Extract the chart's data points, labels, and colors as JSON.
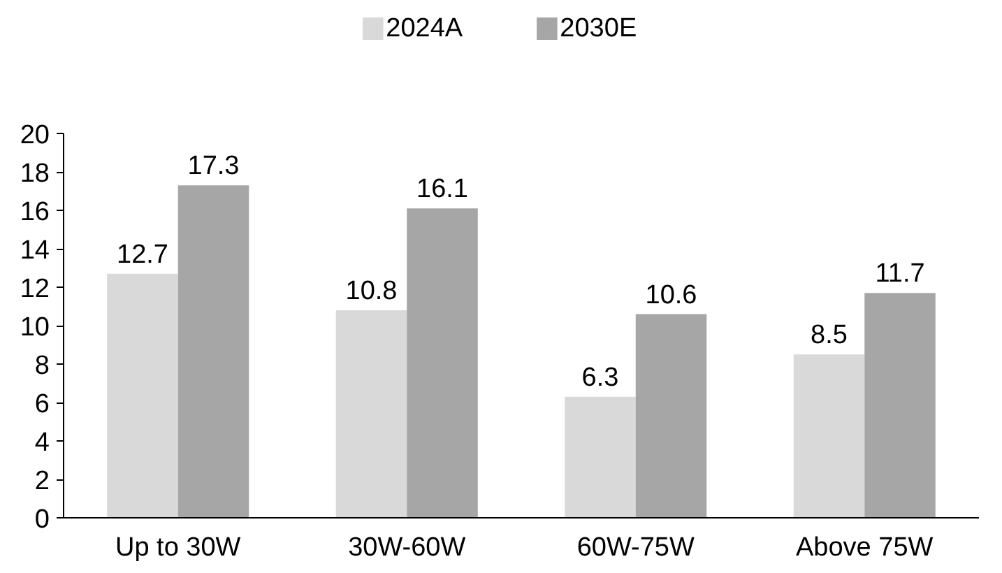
{
  "chart_data": {
    "type": "bar",
    "categories": [
      "Up to 30W",
      "30W-60W",
      "60W-75W",
      "Above 75W"
    ],
    "series": [
      {
        "name": "2024A",
        "color": "#d9d9d9",
        "values": [
          12.7,
          10.8,
          6.3,
          8.5
        ]
      },
      {
        "name": "2030E",
        "color": "#a6a6a6",
        "values": [
          17.3,
          16.1,
          10.6,
          11.7
        ]
      }
    ],
    "ylim": [
      0,
      20
    ],
    "yticks": [
      0,
      2,
      4,
      6,
      8,
      10,
      12,
      14,
      16,
      18,
      20
    ],
    "grid": false,
    "legend": "top",
    "data_labels": true
  }
}
